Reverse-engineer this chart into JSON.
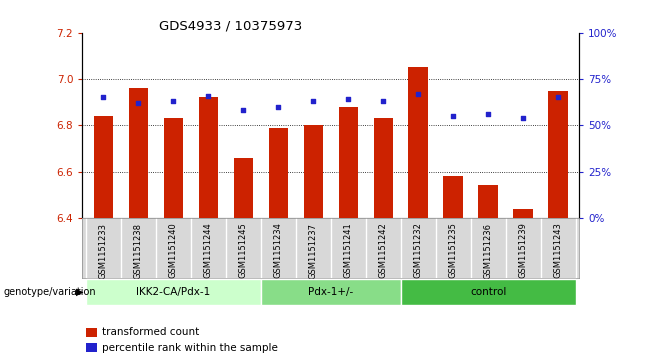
{
  "title": "GDS4933 / 10375973",
  "samples": [
    "GSM1151233",
    "GSM1151238",
    "GSM1151240",
    "GSM1151244",
    "GSM1151245",
    "GSM1151234",
    "GSM1151237",
    "GSM1151241",
    "GSM1151242",
    "GSM1151232",
    "GSM1151235",
    "GSM1151236",
    "GSM1151239",
    "GSM1151243"
  ],
  "bar_values": [
    6.84,
    6.96,
    6.83,
    6.92,
    6.66,
    6.79,
    6.8,
    6.88,
    6.83,
    7.05,
    6.58,
    6.54,
    6.44,
    6.95
  ],
  "dot_values": [
    65,
    62,
    63,
    66,
    58,
    60,
    63,
    64,
    63,
    67,
    55,
    56,
    54,
    65
  ],
  "ylim_left": [
    6.4,
    7.2
  ],
  "ylim_right": [
    0,
    100
  ],
  "yticks_left": [
    6.4,
    6.6,
    6.8,
    7.0,
    7.2
  ],
  "yticks_right": [
    0,
    25,
    50,
    75,
    100
  ],
  "groups": [
    {
      "label": "IKK2-CA/Pdx-1",
      "start": 0,
      "end": 5,
      "color": "#ccffcc"
    },
    {
      "label": "Pdx-1+/-",
      "start": 5,
      "end": 9,
      "color": "#88dd88"
    },
    {
      "label": "control",
      "start": 9,
      "end": 14,
      "color": "#44bb44"
    }
  ],
  "bar_color": "#cc2200",
  "dot_color": "#2222cc",
  "bar_bottom": 6.4,
  "group_label_prefix": "genotype/variation",
  "legend_bar_label": "transformed count",
  "legend_dot_label": "percentile rank within the sample",
  "tick_color_left": "#cc2200",
  "tick_color_right": "#2222cc",
  "label_bg_color": "#d8d8d8",
  "label_border_color": "#aaaaaa"
}
